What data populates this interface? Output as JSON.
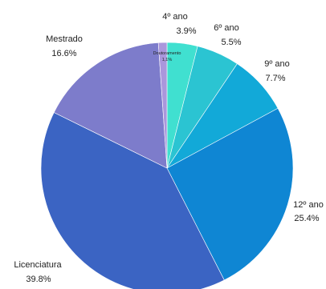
{
  "chart_data": {
    "type": "pie",
    "title": "",
    "slices": [
      {
        "name": "4º ano",
        "value": 3.9,
        "value_label": "3.9%",
        "color": "#40e0d0"
      },
      {
        "name": "6º ano",
        "value": 5.5,
        "value_label": "5.5%",
        "color": "#2bc4d2"
      },
      {
        "name": "9º ano",
        "value": 7.7,
        "value_label": "7.7%",
        "color": "#12a9d8"
      },
      {
        "name": "12º ano",
        "value": 25.4,
        "value_label": "25.4%",
        "color": "#0f86d3"
      },
      {
        "name": "Licenciatura",
        "value": 39.8,
        "value_label": "39.8%",
        "color": "#3b64c3"
      },
      {
        "name": "Mestrado",
        "value": 16.6,
        "value_label": "16.6%",
        "color": "#7d7ccb"
      },
      {
        "name": "Doutoramento",
        "value": 1.1,
        "value_label": "1,1%",
        "color": "#aa97dc"
      }
    ],
    "start_angle_deg": 0,
    "direction": "clockwise",
    "legend": "none"
  }
}
